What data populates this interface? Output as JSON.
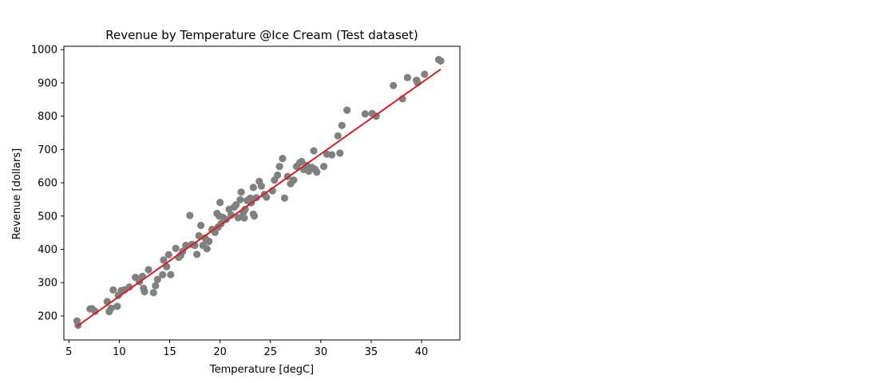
{
  "chart_data": {
    "type": "scatter",
    "title": "Revenue by Temperature @Ice Cream (Test dataset)",
    "xlabel": "Temperature [degC]",
    "ylabel": "Revenue [dollars]",
    "xlim": [
      4.5,
      43.8
    ],
    "ylim": [
      128,
      1010
    ],
    "xticks": [
      5,
      10,
      15,
      20,
      25,
      30,
      35,
      40
    ],
    "yticks": [
      200,
      300,
      400,
      500,
      600,
      700,
      800,
      900,
      1000
    ],
    "grid": false,
    "legend": "none",
    "colors": {
      "points": "#808080",
      "fit_line": "#d62020"
    },
    "fit_line": {
      "x": [
        5.8,
        41.9
      ],
      "y": [
        169,
        941
      ]
    },
    "points": [
      [
        5.8,
        185
      ],
      [
        5.9,
        172
      ],
      [
        7.1,
        221
      ],
      [
        7.3,
        222
      ],
      [
        7.6,
        214
      ],
      [
        8.8,
        243
      ],
      [
        9.0,
        213
      ],
      [
        9.2,
        223
      ],
      [
        9.4,
        278
      ],
      [
        9.8,
        229
      ],
      [
        9.9,
        262
      ],
      [
        10.2,
        276
      ],
      [
        10.5,
        278
      ],
      [
        11.0,
        287
      ],
      [
        11.6,
        316
      ],
      [
        12.0,
        303
      ],
      [
        12.3,
        319
      ],
      [
        12.4,
        283
      ],
      [
        12.5,
        273
      ],
      [
        12.9,
        339
      ],
      [
        13.4,
        270
      ],
      [
        13.6,
        291
      ],
      [
        13.8,
        310
      ],
      [
        14.3,
        324
      ],
      [
        14.4,
        368
      ],
      [
        14.7,
        348
      ],
      [
        14.9,
        384
      ],
      [
        15.1,
        324
      ],
      [
        15.6,
        403
      ],
      [
        15.9,
        376
      ],
      [
        16.1,
        382
      ],
      [
        16.3,
        394
      ],
      [
        16.6,
        412
      ],
      [
        17.0,
        502
      ],
      [
        17.2,
        415
      ],
      [
        17.5,
        412
      ],
      [
        17.7,
        385
      ],
      [
        17.9,
        441
      ],
      [
        18.1,
        472
      ],
      [
        18.3,
        412
      ],
      [
        18.5,
        434
      ],
      [
        18.7,
        402
      ],
      [
        18.7,
        427
      ],
      [
        18.9,
        424
      ],
      [
        19.2,
        460
      ],
      [
        19.5,
        451
      ],
      [
        19.7,
        508
      ],
      [
        19.8,
        467
      ],
      [
        19.9,
        500
      ],
      [
        20.0,
        541
      ],
      [
        20.1,
        477
      ],
      [
        20.3,
        496
      ],
      [
        20.6,
        490
      ],
      [
        20.9,
        520
      ],
      [
        21.1,
        503
      ],
      [
        21.4,
        527
      ],
      [
        21.6,
        534
      ],
      [
        21.8,
        495
      ],
      [
        22.0,
        549
      ],
      [
        22.1,
        572
      ],
      [
        22.3,
        510
      ],
      [
        22.4,
        494
      ],
      [
        22.5,
        520
      ],
      [
        22.7,
        547
      ],
      [
        23.0,
        554
      ],
      [
        23.1,
        540
      ],
      [
        23.3,
        586
      ],
      [
        23.3,
        506
      ],
      [
        23.4,
        500
      ],
      [
        23.6,
        555
      ],
      [
        23.9,
        604
      ],
      [
        24.1,
        590
      ],
      [
        24.4,
        565
      ],
      [
        24.6,
        557
      ],
      [
        25.2,
        576
      ],
      [
        25.4,
        608
      ],
      [
        25.7,
        623
      ],
      [
        25.9,
        649
      ],
      [
        26.2,
        673
      ],
      [
        26.4,
        554
      ],
      [
        26.7,
        619
      ],
      [
        27.0,
        597
      ],
      [
        27.3,
        608
      ],
      [
        27.6,
        649
      ],
      [
        27.9,
        660
      ],
      [
        28.1,
        664
      ],
      [
        28.3,
        640
      ],
      [
        28.6,
        652
      ],
      [
        28.8,
        635
      ],
      [
        29.1,
        646
      ],
      [
        29.3,
        696
      ],
      [
        29.4,
        641
      ],
      [
        29.6,
        632
      ],
      [
        30.3,
        649
      ],
      [
        30.6,
        686
      ],
      [
        31.1,
        684
      ],
      [
        31.7,
        741
      ],
      [
        31.9,
        689
      ],
      [
        32.1,
        772
      ],
      [
        32.6,
        818
      ],
      [
        34.4,
        807
      ],
      [
        35.1,
        808
      ],
      [
        35.5,
        800
      ],
      [
        37.2,
        892
      ],
      [
        38.1,
        852
      ],
      [
        38.6,
        916
      ],
      [
        39.5,
        908
      ],
      [
        39.6,
        901
      ],
      [
        40.3,
        926
      ],
      [
        41.7,
        970
      ],
      [
        41.9,
        966
      ]
    ]
  }
}
